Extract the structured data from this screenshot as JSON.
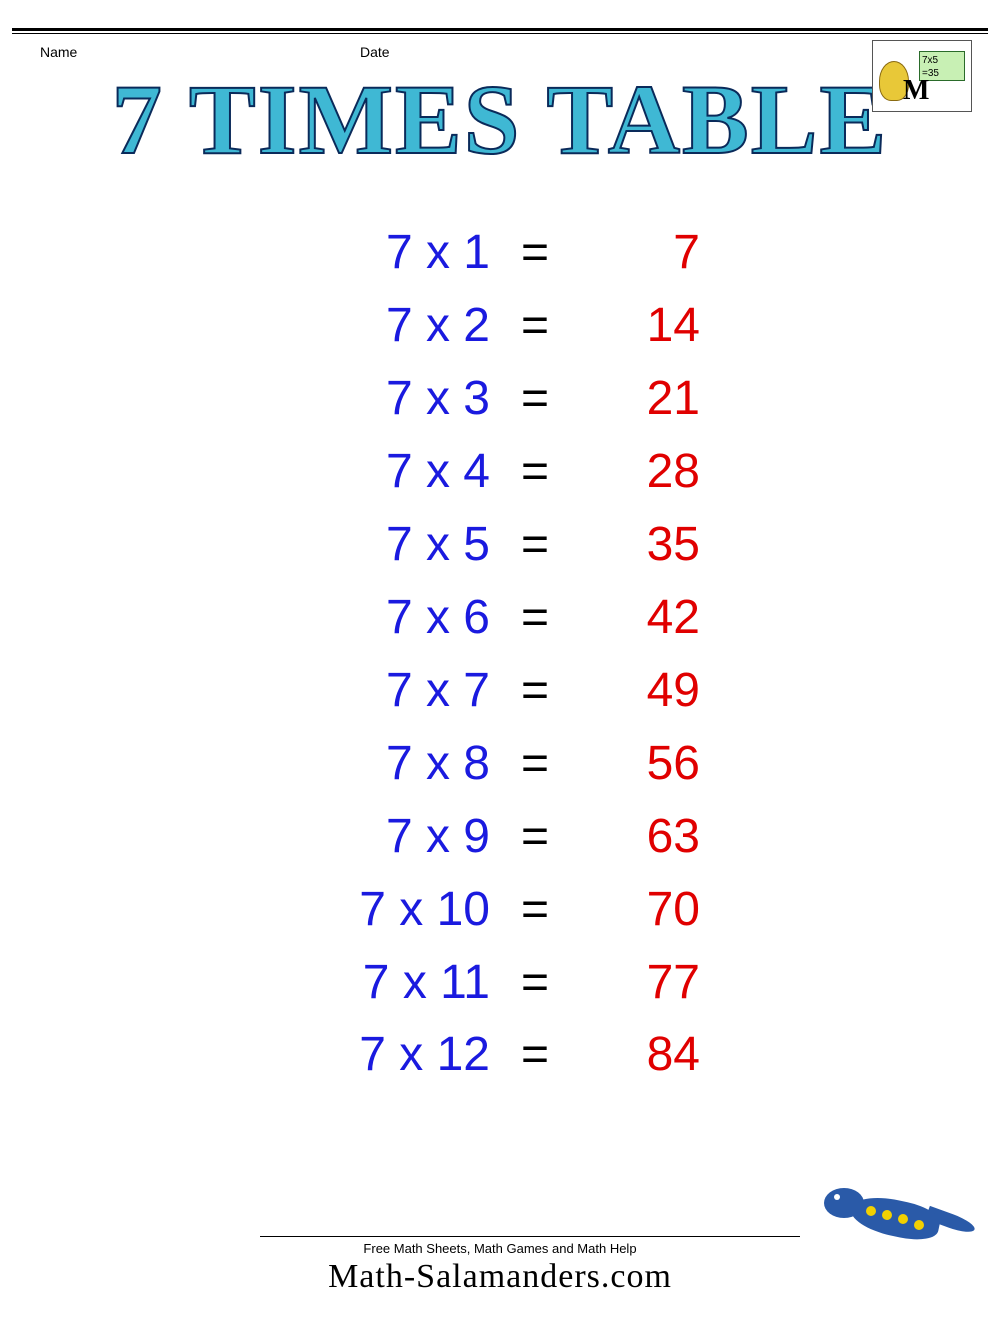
{
  "header": {
    "name_label": "Name",
    "date_label": "Date",
    "logo_board_line1": "7x5",
    "logo_board_line2": "=35"
  },
  "title": "7 TIMES TABLE",
  "style": {
    "title_color": "#3fb8d4",
    "title_stroke": "#0a2a5a",
    "title_fontsize": 100,
    "lhs_color": "#1a1adf",
    "rhs_color": "#e00000",
    "eq_color": "#000000",
    "row_fontsize": 48,
    "background_color": "#ffffff"
  },
  "table": {
    "type": "multiplication-table",
    "base": 7,
    "equals_symbol": "=",
    "multiply_symbol": "x",
    "rows": [
      {
        "a": 7,
        "b": 1,
        "result": 7
      },
      {
        "a": 7,
        "b": 2,
        "result": 14
      },
      {
        "a": 7,
        "b": 3,
        "result": 21
      },
      {
        "a": 7,
        "b": 4,
        "result": 28
      },
      {
        "a": 7,
        "b": 5,
        "result": 35
      },
      {
        "a": 7,
        "b": 6,
        "result": 42
      },
      {
        "a": 7,
        "b": 7,
        "result": 49
      },
      {
        "a": 7,
        "b": 8,
        "result": 56
      },
      {
        "a": 7,
        "b": 9,
        "result": 63
      },
      {
        "a": 7,
        "b": 10,
        "result": 70
      },
      {
        "a": 7,
        "b": 11,
        "result": 77
      },
      {
        "a": 7,
        "b": 12,
        "result": 84
      }
    ]
  },
  "footer": {
    "tagline": "Free Math Sheets, Math Games and Math Help",
    "site": "Math-Salamanders.com",
    "salamander_color": "#2a5aa8",
    "spot_color": "#f2d000"
  }
}
